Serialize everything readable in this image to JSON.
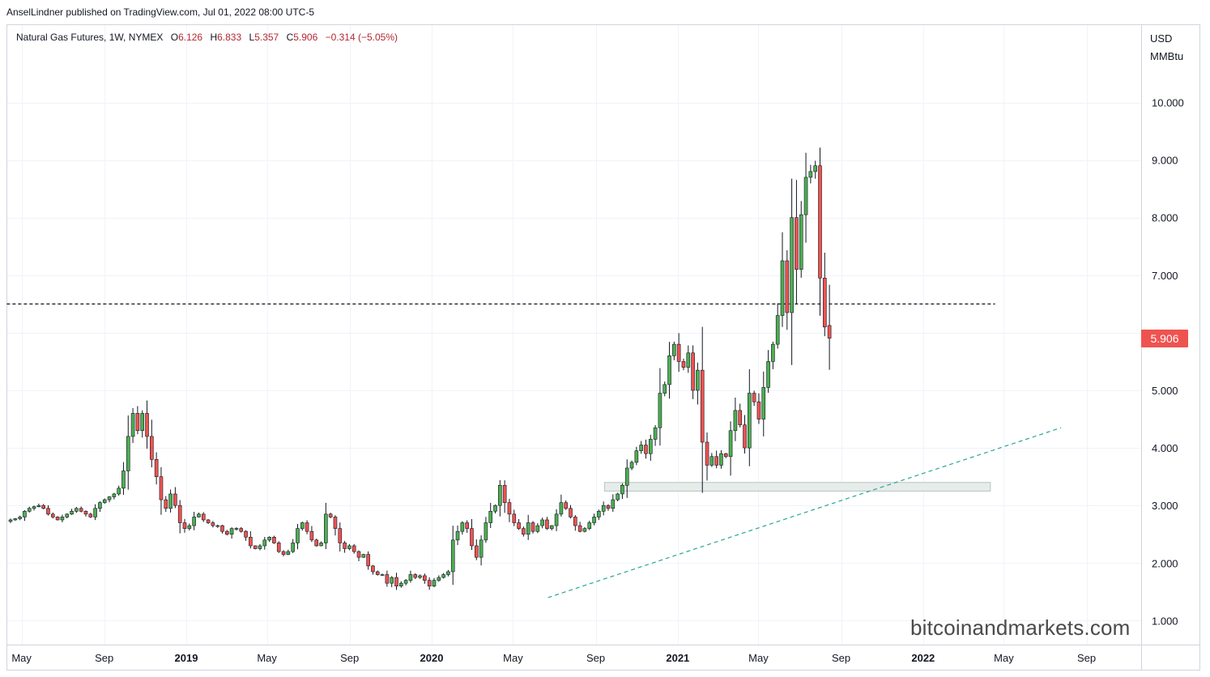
{
  "publisher_line": "AnselLindner published on TradingView.com, Jul 01, 2022 08:00 UTC-5",
  "legend": {
    "symbol": "Natural Gas Futures, 1W, NYMEX",
    "open_label": "O",
    "open": "6.126",
    "high_label": "H",
    "high": "6.833",
    "low_label": "L",
    "low": "5.357",
    "close_label": "C",
    "close": "5.906",
    "change": "−0.314 (−5.05%)"
  },
  "price_axis": {
    "unit_top": "USD",
    "unit_bottom": "MMBtu"
  },
  "last_price_label": "5.906",
  "watermark": "bitcoinandmarkets.com",
  "colors": {
    "up": "#4caf50",
    "down": "#ef5350",
    "wick": "#131722",
    "trendline": "#26a69a",
    "resistance": "#131722",
    "zone_fill": "#e6ecea",
    "grid": "#f0f3fa"
  },
  "chart_data": {
    "type": "candlestick",
    "timeframe": "1W",
    "x_axis_labels": [
      "May",
      "Sep",
      "2019",
      "May",
      "Sep",
      "2020",
      "May",
      "Sep",
      "2021",
      "May",
      "Sep",
      "2022",
      "May",
      "Sep"
    ],
    "x_axis_dates": [
      "2018-05-01",
      "2018-09-01",
      "2019-01-01",
      "2019-05-01",
      "2019-09-01",
      "2020-01-01",
      "2020-05-01",
      "2020-09-01",
      "2021-01-01",
      "2021-05-01",
      "2021-09-01",
      "2022-01-01",
      "2022-05-01",
      "2022-09-01"
    ],
    "y_axis_labels": [
      "1.000",
      "2.000",
      "3.000",
      "4.000",
      "5.000",
      "6.000",
      "7.000",
      "8.000",
      "9.000",
      "10.000"
    ],
    "y_axis_values": [
      1,
      2,
      3,
      4,
      5,
      6,
      7,
      8,
      9,
      10
    ],
    "ylim": [
      0.7,
      11.2
    ],
    "last_bar": {
      "date": "2022-06-27",
      "open": 6.126,
      "high": 6.833,
      "low": 5.357,
      "close": 5.906
    },
    "closes": [
      2.75,
      2.77,
      2.8,
      2.9,
      2.95,
      2.98,
      3.0,
      2.95,
      2.85,
      2.8,
      2.75,
      2.8,
      2.85,
      2.9,
      2.95,
      2.9,
      2.85,
      2.8,
      2.95,
      3.05,
      3.1,
      3.15,
      3.2,
      3.3,
      3.6,
      4.2,
      4.6,
      4.3,
      4.6,
      4.2,
      3.8,
      3.5,
      3.1,
      2.95,
      3.2,
      3.0,
      2.7,
      2.6,
      2.65,
      2.8,
      2.85,
      2.75,
      2.7,
      2.65,
      2.65,
      2.55,
      2.5,
      2.6,
      2.6,
      2.55,
      2.45,
      2.3,
      2.25,
      2.3,
      2.4,
      2.45,
      2.35,
      2.2,
      2.15,
      2.2,
      2.35,
      2.6,
      2.7,
      2.55,
      2.4,
      2.3,
      2.35,
      2.85,
      2.8,
      2.6,
      2.35,
      2.25,
      2.3,
      2.2,
      2.1,
      2.15,
      1.95,
      1.85,
      1.8,
      1.8,
      1.65,
      1.75,
      1.6,
      1.65,
      1.7,
      1.8,
      1.75,
      1.78,
      1.7,
      1.6,
      1.7,
      1.75,
      1.8,
      1.85,
      2.4,
      2.55,
      2.7,
      2.6,
      2.3,
      2.1,
      2.4,
      2.7,
      2.9,
      3.0,
      3.35,
      3.05,
      2.85,
      2.7,
      2.6,
      2.5,
      2.7,
      2.55,
      2.65,
      2.75,
      2.6,
      2.65,
      2.85,
      3.05,
      2.95,
      2.8,
      2.65,
      2.55,
      2.6,
      2.7,
      2.8,
      2.9,
      3.0,
      2.95,
      3.1,
      3.2,
      3.35,
      3.65,
      3.75,
      3.95,
      4.05,
      3.9,
      4.15,
      4.35,
      4.95,
      5.1,
      5.6,
      5.8,
      5.5,
      5.4,
      5.65,
      5.0,
      5.35,
      4.1,
      3.7,
      3.85,
      3.7,
      3.9,
      3.85,
      4.3,
      4.65,
      4.4,
      4.0,
      4.95,
      4.8,
      4.5,
      5.05,
      5.5,
      5.8,
      6.3,
      7.25,
      6.35,
      8.0,
      7.1,
      8.05,
      8.7,
      8.8,
      8.9,
      6.95,
      6.1,
      5.906
    ],
    "trendline": {
      "from": {
        "date": "2020-06-22",
        "value": 1.4
      },
      "to": {
        "date": "2022-07-25",
        "value": 4.35
      }
    },
    "resistance_line": {
      "value": 6.5,
      "from_date": "2018-04-09",
      "to_date": "2022-04-18"
    },
    "support_zone": {
      "from_date": "2020-09-14",
      "to_date": "2022-04-11",
      "low": 3.25,
      "high": 3.4
    }
  }
}
